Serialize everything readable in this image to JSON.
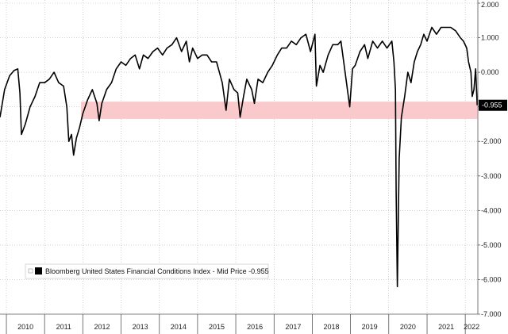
{
  "chart_data": {
    "type": "line",
    "title": "",
    "xlabel": "",
    "ylabel": "",
    "x_range": [
      "2009-11-01",
      "2022-05-01"
    ],
    "ylim": [
      -7.0,
      2.0
    ],
    "y_ticks": [
      2.0,
      1.0,
      0.0,
      -1.0,
      -2.0,
      -3.0,
      -4.0,
      -5.0,
      -6.0,
      -7.0
    ],
    "y_tick_labels": [
      "2.000",
      "1.000",
      "0.000",
      "-1.000",
      "-2.000",
      "-3.000",
      "-4.000",
      "-5.000",
      "-6.000",
      "-7.000"
    ],
    "x_tick_labels": [
      "2010",
      "2011",
      "2012",
      "2013",
      "2014",
      "2015",
      "2016",
      "2017",
      "2018",
      "2019",
      "2020",
      "2021",
      "2022"
    ],
    "grid": true,
    "legend": {
      "position": "bottom-left",
      "text": "Bloomberg United States Financial Conditions Index - Mid Price -0.955"
    },
    "last_value_label": "-0.955",
    "line_color": "#000000",
    "band_color": "#f9c9cc",
    "highlight_band": {
      "y_from": -1.35,
      "y_to": -0.85,
      "x_from": "2011-12-15",
      "x_to": "2022-04-25"
    },
    "series": [
      {
        "x": [
          "2009-11-01",
          "2009-12-15",
          "2010-02-01",
          "2010-03-15",
          "2010-04-20",
          "2010-05-10",
          "2010-05-25",
          "2010-07-01",
          "2010-08-15",
          "2010-10-01",
          "2010-11-15",
          "2011-01-01",
          "2011-02-15",
          "2011-04-01",
          "2011-05-15",
          "2011-07-01",
          "2011-08-01",
          "2011-08-20",
          "2011-09-15",
          "2011-10-05",
          "2011-11-01",
          "2011-12-01",
          "2012-01-01",
          "2012-02-15",
          "2012-04-01",
          "2012-05-15",
          "2012-06-05",
          "2012-07-01",
          "2012-08-15",
          "2012-10-01",
          "2012-11-15",
          "2013-01-01",
          "2013-02-15",
          "2013-04-01",
          "2013-05-15",
          "2013-06-25",
          "2013-08-01",
          "2013-09-15",
          "2013-11-01",
          "2013-12-15",
          "2014-02-01",
          "2014-03-15",
          "2014-05-01",
          "2014-06-15",
          "2014-08-01",
          "2014-09-15",
          "2014-10-15",
          "2014-11-15",
          "2015-01-01",
          "2015-02-15",
          "2015-04-01",
          "2015-05-15",
          "2015-07-01",
          "2015-08-25",
          "2015-09-30",
          "2015-11-01",
          "2015-12-15",
          "2016-01-20",
          "2016-02-11",
          "2016-03-15",
          "2016-04-15",
          "2016-06-01",
          "2016-06-27",
          "2016-08-01",
          "2016-09-15",
          "2016-11-01",
          "2016-12-15",
          "2017-02-01",
          "2017-03-15",
          "2017-05-01",
          "2017-06-15",
          "2017-08-01",
          "2017-09-15",
          "2017-11-01",
          "2017-12-15",
          "2018-01-26",
          "2018-02-09",
          "2018-03-15",
          "2018-04-15",
          "2018-06-01",
          "2018-07-15",
          "2018-09-01",
          "2018-10-01",
          "2018-11-01",
          "2018-12-24",
          "2019-01-20",
          "2019-02-15",
          "2019-04-01",
          "2019-05-15",
          "2019-06-15",
          "2019-08-01",
          "2019-09-15",
          "2019-11-01",
          "2019-12-15",
          "2020-01-31",
          "2020-02-20",
          "2020-03-05",
          "2020-03-12",
          "2020-03-23",
          "2020-04-10",
          "2020-05-01",
          "2020-06-01",
          "2020-07-01",
          "2020-08-01",
          "2020-09-01",
          "2020-10-01",
          "2020-11-01",
          "2020-12-01",
          "2021-01-01",
          "2021-02-15",
          "2021-04-01",
          "2021-05-15",
          "2021-07-01",
          "2021-08-15",
          "2021-10-01",
          "2021-11-15",
          "2021-12-15",
          "2022-01-15",
          "2022-02-01",
          "2022-02-24",
          "2022-03-08",
          "2022-03-25",
          "2022-04-10",
          "2022-04-25"
        ],
        "y": [
          -1.3,
          -0.5,
          -0.1,
          0.05,
          0.1,
          -0.6,
          -1.8,
          -1.5,
          -1.0,
          -0.7,
          -0.3,
          -0.3,
          -0.2,
          0.0,
          -0.3,
          -0.4,
          -1.0,
          -2.0,
          -1.8,
          -2.4,
          -1.9,
          -1.6,
          -1.2,
          -0.8,
          -0.5,
          -0.9,
          -1.4,
          -0.9,
          -0.5,
          -0.3,
          0.1,
          0.3,
          0.2,
          0.4,
          0.5,
          0.1,
          0.5,
          0.4,
          0.6,
          0.7,
          0.5,
          0.7,
          0.8,
          1.0,
          0.6,
          0.9,
          0.3,
          0.7,
          0.4,
          0.5,
          0.5,
          0.3,
          0.3,
          -0.3,
          -1.1,
          -0.2,
          -0.5,
          -0.6,
          -1.3,
          -0.7,
          -0.2,
          -0.5,
          -0.9,
          -0.2,
          -0.3,
          0.0,
          0.2,
          0.5,
          0.7,
          0.7,
          0.9,
          0.8,
          1.0,
          1.1,
          0.6,
          1.1,
          -0.4,
          0.2,
          0.0,
          0.5,
          0.8,
          0.8,
          0.9,
          0.2,
          -1.0,
          0.1,
          0.2,
          0.6,
          0.8,
          0.4,
          0.9,
          0.7,
          0.9,
          0.7,
          0.9,
          0.3,
          -0.5,
          -3.5,
          -6.2,
          -2.5,
          -1.3,
          -0.7,
          0.0,
          -0.3,
          0.3,
          0.6,
          0.8,
          1.1,
          0.9,
          1.3,
          1.1,
          1.3,
          1.3,
          1.3,
          1.2,
          1.0,
          0.9,
          0.7,
          0.3,
          0.0,
          -0.7,
          -0.5,
          0.1,
          -0.955
        ]
      }
    ]
  }
}
